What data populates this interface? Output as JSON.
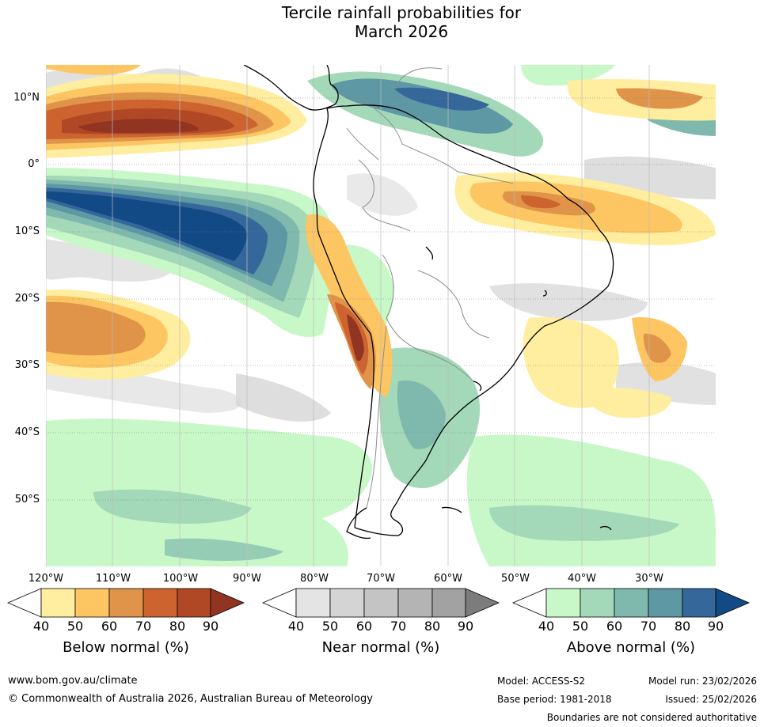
{
  "title_line1": "Tercile rainfall probabilities for",
  "title_line2": "March 2026",
  "lat_labels": [
    "10°N",
    "0°",
    "10°S",
    "20°S",
    "30°S",
    "40°S",
    "50°S"
  ],
  "lon_labels": [
    "120°W",
    "110°W",
    "100°W",
    "90°W",
    "80°W",
    "70°W",
    "60°W",
    "50°W",
    "40°W",
    "30°W"
  ],
  "colorbars": [
    {
      "label": "Below normal (%)",
      "ticks": [
        "40",
        "50",
        "60",
        "70",
        "80",
        "90"
      ],
      "colors": [
        "#ffeea0",
        "#fdc662",
        "#e09449",
        "#cd632e",
        "#b04826",
        "#923422"
      ]
    },
    {
      "label": "Near normal (%)",
      "ticks": [
        "40",
        "50",
        "60",
        "70",
        "80",
        "90"
      ],
      "colors": [
        "#e4e4e4",
        "#d4d4d4",
        "#c4c4c4",
        "#b4b4b4",
        "#a2a2a2",
        "#7c7c7c"
      ]
    },
    {
      "label": "Above normal (%)",
      "ticks": [
        "40",
        "50",
        "60",
        "70",
        "80",
        "90"
      ],
      "colors": [
        "#c8f8c8",
        "#a3d8b8",
        "#7fb9ad",
        "#5d98a4",
        "#35679a",
        "#124a85"
      ]
    }
  ],
  "footer": {
    "url": "www.bom.gov.au/climate",
    "copyright": "© Commonwealth of Australia 2026, Australian Bureau of Meteorology",
    "model": "Model: ACCESS-S2",
    "base_period": "Base period: 1981-2018",
    "model_run": "Model run: 23/02/2026",
    "issued": "Issued: 25/02/2026",
    "disclaimer": "Boundaries are not considered authoritative"
  }
}
